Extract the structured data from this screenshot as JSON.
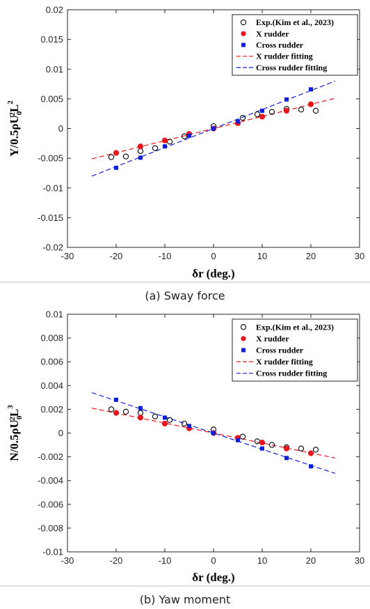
{
  "chart_data": [
    {
      "type": "scatter",
      "xlabel": "δr (deg.)",
      "ylabel_parts": [
        "Y/0.5ρU",
        "0",
        "2",
        "L",
        "2"
      ],
      "caption": "(a)  Sway  force",
      "xlim": [
        -30,
        30
      ],
      "ylim": [
        -0.02,
        0.02
      ],
      "xticks": [
        -30,
        -20,
        -10,
        0,
        10,
        20,
        30
      ],
      "xtick_labels": [
        "-30",
        "-20",
        "-10",
        "0",
        "10",
        "20",
        "30"
      ],
      "yticks": [
        -0.02,
        -0.015,
        -0.01,
        -0.005,
        0,
        0.005,
        0.01,
        0.015,
        0.02
      ],
      "ytick_labels": [
        "-0.02",
        "-0.015",
        "-0.01",
        "-0.005",
        "0",
        "0.005",
        "0.01",
        "0.015",
        "0.02"
      ],
      "legend_position": "top-right",
      "series": [
        {
          "name": "Exp.(Kim et al., 2023)",
          "marker": "open-circle",
          "color": "#000000",
          "x": [
            -21,
            -18,
            -15,
            -12,
            -9,
            -6,
            0,
            6,
            9,
            12,
            15,
            18,
            21
          ],
          "y": [
            -0.0048,
            -0.0047,
            -0.0038,
            -0.0033,
            -0.0022,
            -0.0013,
            0.0004,
            0.0018,
            0.0024,
            0.0028,
            0.0033,
            0.0032,
            0.003
          ]
        },
        {
          "name": "X rudder",
          "marker": "filled-circle",
          "color": "#e8171d",
          "x": [
            -20,
            -15,
            -10,
            -5,
            0,
            5,
            10,
            15,
            20
          ],
          "y": [
            -0.0041,
            -0.003,
            -0.002,
            -0.0009,
            0.0,
            0.0009,
            0.002,
            0.003,
            0.0041
          ]
        },
        {
          "name": "Cross rudder",
          "marker": "square",
          "color": "#1020d8",
          "x": [
            -20,
            -15,
            -10,
            -5,
            0,
            5,
            10,
            15,
            20
          ],
          "y": [
            -0.0066,
            -0.0049,
            -0.003,
            -0.0012,
            0.0,
            0.0012,
            0.003,
            0.0049,
            0.0066
          ]
        },
        {
          "name": "X rudder fitting",
          "line": "dashed",
          "color": "#e8171d",
          "x": [
            -25,
            25
          ],
          "y": [
            -0.0051,
            0.0051
          ]
        },
        {
          "name": "Cross rudder fitting",
          "line": "dashed",
          "color": "#1020d8",
          "x": [
            -25,
            25
          ],
          "y": [
            -0.008,
            0.008
          ]
        }
      ]
    },
    {
      "type": "scatter",
      "xlabel": "δr (deg.)",
      "ylabel_parts": [
        "N/0.5ρU",
        "0",
        "2",
        "L",
        "3"
      ],
      "caption": "(b)  Yaw  moment",
      "xlim": [
        -30,
        30
      ],
      "ylim": [
        -0.01,
        0.01
      ],
      "xticks": [
        -30,
        -20,
        -10,
        0,
        10,
        20,
        30
      ],
      "xtick_labels": [
        "-30",
        "-20",
        "-10",
        "0",
        "10",
        "20",
        "30"
      ],
      "yticks": [
        -0.01,
        -0.008,
        -0.006,
        -0.004,
        -0.002,
        0,
        0.002,
        0.004,
        0.006,
        0.008,
        0.01
      ],
      "ytick_labels": [
        "-0.01",
        "-0.008",
        "-0.006",
        "-0.004",
        "-0.002",
        "0",
        "0.002",
        "0.004",
        "0.006",
        "0.008",
        "0.01"
      ],
      "legend_position": "top-right",
      "series": [
        {
          "name": "Exp.(Kim et al., 2023)",
          "marker": "open-circle",
          "color": "#000000",
          "x": [
            -21,
            -18,
            -15,
            -12,
            -9,
            -6,
            0,
            6,
            9,
            12,
            15,
            18,
            21
          ],
          "y": [
            0.002,
            0.0018,
            0.0017,
            0.0014,
            0.0011,
            0.0008,
            0.0003,
            -0.0003,
            -0.0007,
            -0.001,
            -0.0012,
            -0.0013,
            -0.0014
          ]
        },
        {
          "name": "X rudder",
          "marker": "filled-circle",
          "color": "#e8171d",
          "x": [
            -20,
            -15,
            -10,
            -5,
            0,
            5,
            10,
            15,
            20
          ],
          "y": [
            0.0017,
            0.0013,
            0.0008,
            0.0004,
            0.0,
            -0.0004,
            -0.0008,
            -0.0013,
            -0.0017
          ]
        },
        {
          "name": "Cross rudder",
          "marker": "square",
          "color": "#1020d8",
          "x": [
            -20,
            -15,
            -10,
            -5,
            0,
            5,
            10,
            15,
            20
          ],
          "y": [
            0.0028,
            0.0021,
            0.0013,
            0.0006,
            0.0,
            -0.0006,
            -0.0013,
            -0.0021,
            -0.0028
          ]
        },
        {
          "name": "X rudder fitting",
          "line": "dashed",
          "color": "#e8171d",
          "x": [
            -25,
            25
          ],
          "y": [
            0.0021,
            -0.0021
          ]
        },
        {
          "name": "Cross rudder fitting",
          "line": "dashed",
          "color": "#1020d8",
          "x": [
            -25,
            25
          ],
          "y": [
            0.0034,
            -0.0034
          ]
        }
      ]
    }
  ]
}
